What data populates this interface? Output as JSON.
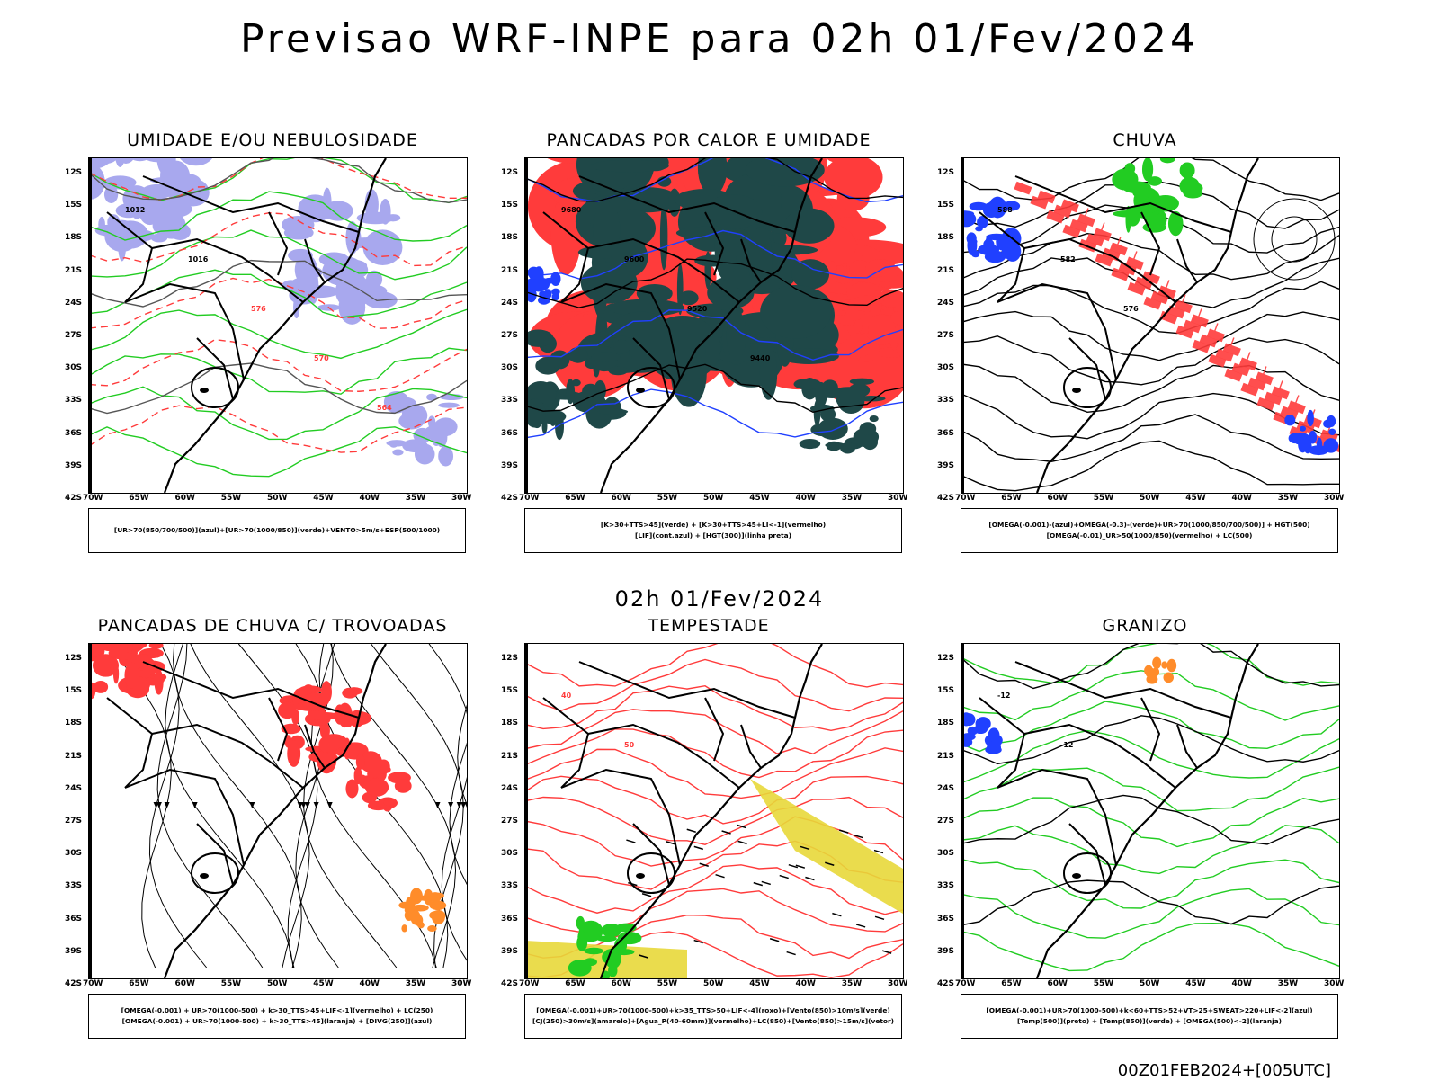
{
  "header": {
    "title": "Previsao WRF-INPE  para 02h 01/Fev/2024"
  },
  "middle": {
    "title": "02h 01/Fev/2024"
  },
  "footer": {
    "stamp": "00Z01FEB2024+[005UTC]"
  },
  "axes": {
    "lat_labels": [
      "12S",
      "15S",
      "18S",
      "21S",
      "24S",
      "27S",
      "30S",
      "33S",
      "36S",
      "39S",
      "42S"
    ],
    "lon_labels": [
      "70W",
      "65W",
      "60W",
      "55W",
      "50W",
      "45W",
      "40W",
      "35W",
      "30W"
    ]
  },
  "colors": {
    "red": "#ff3b3b",
    "green": "#22cc22",
    "blue": "#2040ff",
    "lavender": "#a8a8ee",
    "darkteal": "#1f4848",
    "yellow": "#e8d83a",
    "orange": "#ff8c2a",
    "black": "#000000"
  },
  "panels": [
    {
      "title": "UMIDADE E/OU NEBULOSIDADE",
      "legend": [
        "[UR>70(850/700/500)](azul)+[UR>70(1000/850)](verde)+VENTO>5m/s+ESP(500/1000)"
      ],
      "contours": [
        "1012",
        "1016",
        "576",
        "570",
        "564"
      ]
    },
    {
      "title": "PANCADAS POR CALOR E UMIDADE",
      "legend": [
        "[K>30+TTS>45](verde) + [K>30+TTS>45+LI<-1](vermelho)",
        "[LIF](cont.azul) + [HGT(300)](linha preta)"
      ],
      "contours": [
        "9680",
        "9600",
        "9520",
        "9440"
      ]
    },
    {
      "title": "CHUVA",
      "legend": [
        "[OMEGA(-0.001)-(azul)+OMEGA(-0.3)-(verde)+UR>70(1000/850/700/500)] + HGT(500)",
        "[OMEGA(-0.01)_UR>50(1000/850)(vermelho) + LC(500)"
      ],
      "contours": [
        "588",
        "582",
        "576"
      ]
    },
    {
      "title": "PANCADAS DE CHUVA C/ TROVOADAS",
      "legend": [
        "[OMEGA(-0.001) + UR>70(1000-500) + k>30_TTS>45+LIF<-1](vermelho) + LC(250)",
        "[OMEGA(-0.001) + UR>70(1000-500) + k>30_TTS>45](laranja) + [DIVG(250)](azul)"
      ],
      "contours": []
    },
    {
      "title": "TEMPESTADE",
      "legend": [
        "[OMEGA(-0.001)+UR>70(1000-500)+k>35_TTS>50+LIF<-4](roxo)+[Vento(850)>10m/s](verde)",
        "[CJ(250)>30m/s](amarelo)+[Agua_P(40-60mm)](vermelho)+LC(850)+[Vento(850)>15m/s](vetor)"
      ],
      "contours": [
        "40",
        "50"
      ]
    },
    {
      "title": "GRANIZO",
      "legend": [
        "[OMEGA(-0.001)+UR>70(1000-500)+k<60+TTS>52+VT>25+SWEAT>220+LIF<-2](azul)",
        "[Temp(500)](preto) + [Temp(850)](verde) + [OMEGA(500)<-2](laranja)"
      ],
      "contours": [
        "-12",
        "-12"
      ]
    }
  ]
}
